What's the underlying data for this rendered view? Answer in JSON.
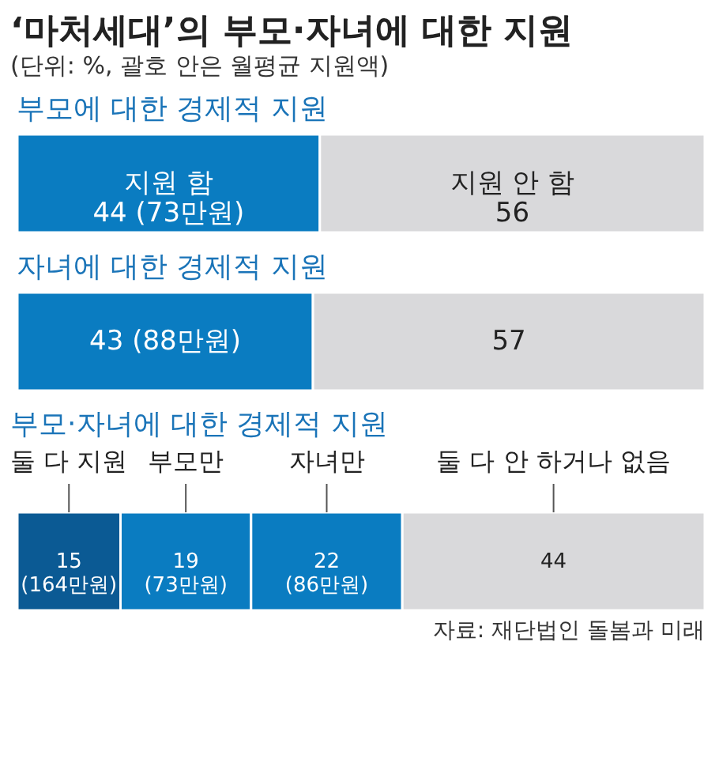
{
  "chart_data": [
    {
      "type": "bar",
      "orientation": "horizontal",
      "stacked": true,
      "title": "‘마처세대’의 부모·자녀에 대한 지원",
      "subtitle": "(단위: %, 괄호 안은 월평균 지원액)",
      "xlabel": "부모에 대한 경제적 지원",
      "categories": [
        null
      ],
      "series": [
        {
          "name": "지원 함",
          "color": "#0a7cc1",
          "values": [
            44
          ],
          "value_labels": [
            "44 (73만원)"
          ]
        },
        {
          "name": "지원 안 함",
          "color": "#d9d9db",
          "values": [
            56
          ],
          "value_labels": [
            "56"
          ]
        }
      ]
    },
    {
      "type": "bar",
      "orientation": "horizontal",
      "stacked": true,
      "xlabel": "자녀에 대한 경제적 지원",
      "categories": [
        null
      ],
      "series": [
        {
          "color": "#0a7cc1",
          "values": [
            43
          ],
          "value_labels": [
            "43 (88만원)"
          ]
        },
        {
          "color": "#d9d9db",
          "values": [
            57
          ],
          "value_labels": [
            "57"
          ]
        }
      ]
    },
    {
      "type": "bar",
      "orientation": "horizontal",
      "stacked": true,
      "xlabel": "부모·자녀에 대한 경제적 지원",
      "categories": [
        null
      ],
      "annotations": [
        "자료: 재단법인 돌봄과 미래"
      ],
      "series": [
        {
          "name": "둘 다 지원",
          "color": "#0b5a94",
          "values": [
            15
          ],
          "value_labels": [
            "15 (164만원)"
          ]
        },
        {
          "name": "부모만",
          "color": "#0a7cc1",
          "values": [
            19
          ],
          "value_labels": [
            "19 (73만원)"
          ]
        },
        {
          "name": "자녀만",
          "color": "#0a7cc1",
          "values": [
            22
          ],
          "value_labels": [
            "22 (86만원)"
          ]
        },
        {
          "name": "둘 다 안 하거나 없음",
          "color": "#d9d9db",
          "values": [
            44
          ],
          "value_labels": [
            "44"
          ]
        }
      ]
    }
  ]
}
